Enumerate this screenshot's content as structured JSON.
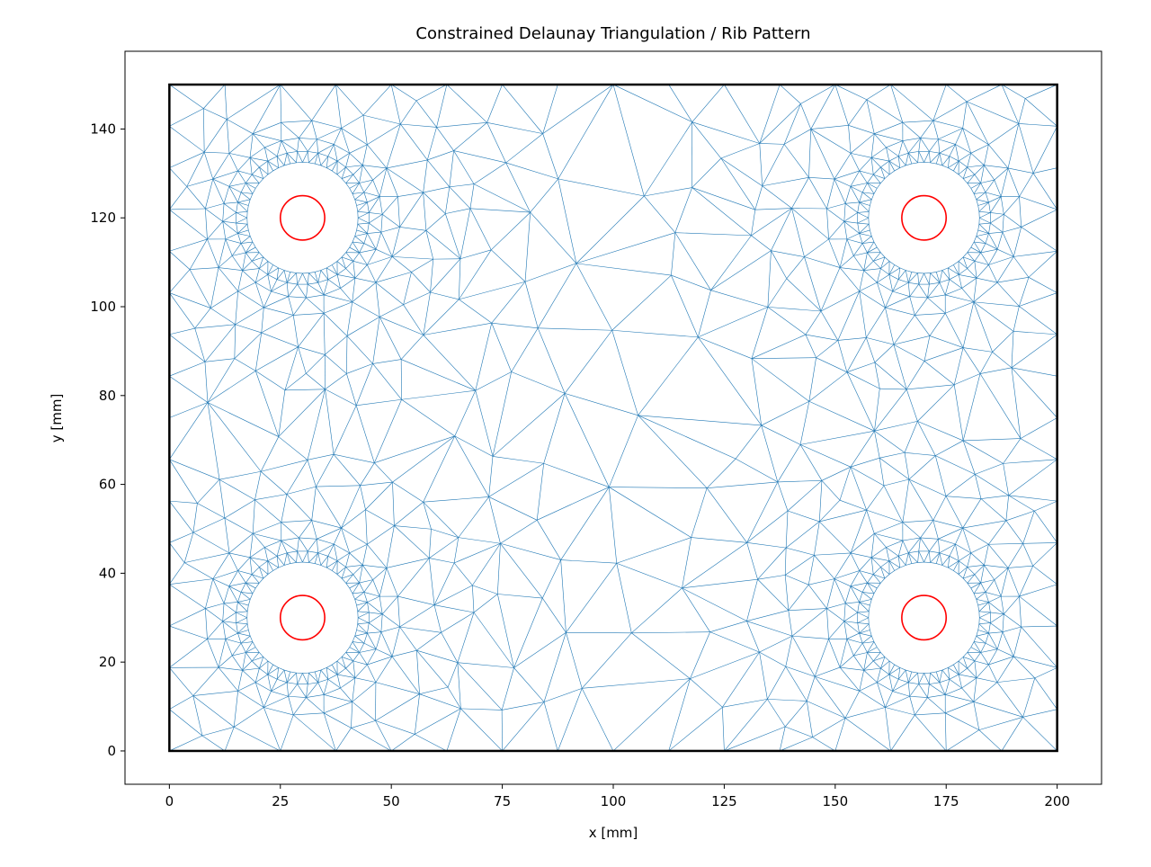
{
  "chart_data": {
    "type": "triangulation",
    "title": "Constrained Delaunay Triangulation / Rib Pattern",
    "xlabel": "x [mm]",
    "ylabel": "y [mm]",
    "xlim": [
      -10,
      210
    ],
    "ylim": [
      -7.5,
      157.5
    ],
    "xticks": [
      0,
      25,
      50,
      75,
      100,
      125,
      150,
      175,
      200
    ],
    "yticks": [
      0,
      20,
      40,
      60,
      80,
      100,
      120,
      140
    ],
    "grid": false,
    "boundary": {
      "x": [
        0,
        200
      ],
      "y": [
        0,
        150
      ],
      "color": "#000000"
    },
    "holes": [
      {
        "cx": 30,
        "cy": 30,
        "r": 12.5
      },
      {
        "cx": 30,
        "cy": 120,
        "r": 12.5
      },
      {
        "cx": 170,
        "cy": 30,
        "r": 12.5
      },
      {
        "cx": 170,
        "cy": 120,
        "r": 12.5
      }
    ],
    "bolt_circles": [
      {
        "cx": 30,
        "cy": 30,
        "r": 5
      },
      {
        "cx": 30,
        "cy": 120,
        "r": 5
      },
      {
        "cx": 170,
        "cy": 30,
        "r": 5
      },
      {
        "cx": 170,
        "cy": 120,
        "r": 5
      }
    ],
    "mesh_color": "#1f77b4",
    "bolt_color": "#ff0000"
  }
}
